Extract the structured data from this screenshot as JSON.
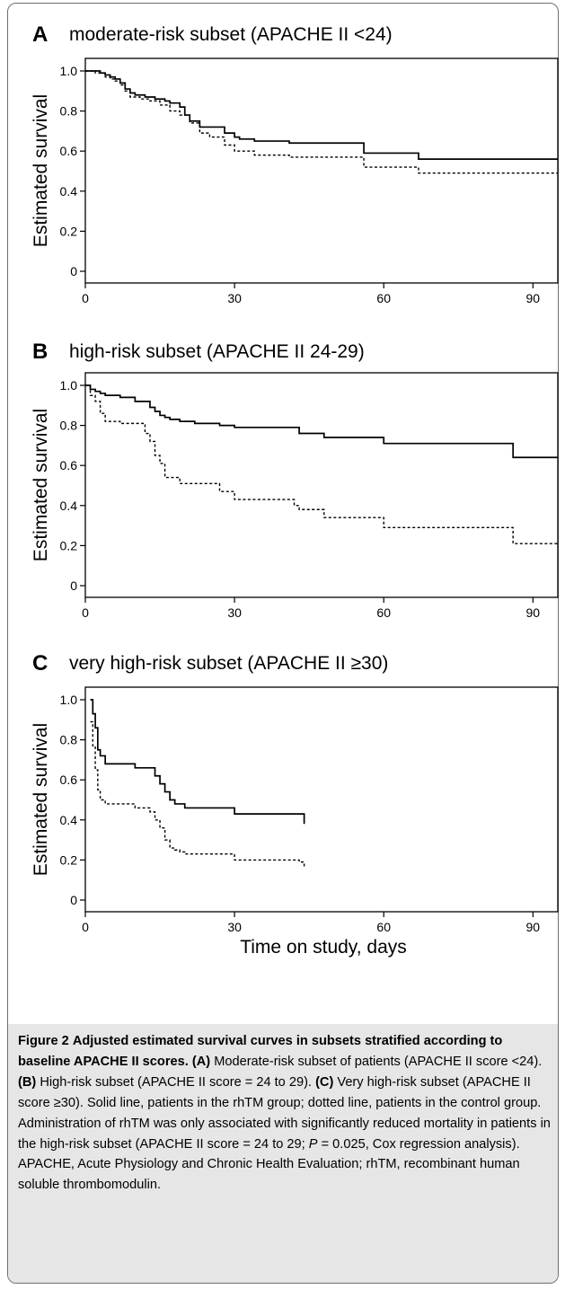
{
  "chart_data": [
    {
      "type": "line",
      "panel": "A",
      "title": "moderate-risk subset (APACHE II <24)",
      "xlabel": "",
      "ylabel": "Estimated survival",
      "xlim": [
        0,
        95
      ],
      "ylim": [
        0,
        1.0
      ],
      "xticks": [
        0,
        30,
        60,
        90
      ],
      "yticks": [
        0,
        0.2,
        0.4,
        0.6,
        0.8,
        1.0
      ],
      "ytick_labels": [
        "0",
        "0.2",
        "0.4",
        "0.6",
        "0.8",
        "1.0"
      ],
      "step": true,
      "series": [
        {
          "style": "solid",
          "x": [
            0,
            3,
            4,
            5,
            6,
            7,
            8,
            9,
            10,
            12,
            14,
            16,
            17,
            19,
            20,
            21,
            23,
            25,
            28,
            30,
            31,
            34,
            41,
            56,
            67,
            95
          ],
          "y": [
            1.0,
            0.99,
            0.98,
            0.97,
            0.96,
            0.94,
            0.91,
            0.89,
            0.88,
            0.87,
            0.86,
            0.85,
            0.84,
            0.82,
            0.78,
            0.75,
            0.72,
            0.72,
            0.69,
            0.67,
            0.66,
            0.65,
            0.64,
            0.59,
            0.56,
            0.56
          ]
        },
        {
          "style": "dashed",
          "x": [
            0,
            2,
            4,
            5,
            6,
            7,
            8,
            9,
            11,
            13,
            15,
            17,
            19,
            21,
            23,
            25,
            28,
            30,
            34,
            41,
            56,
            67,
            95
          ],
          "y": [
            1.0,
            0.99,
            0.97,
            0.96,
            0.95,
            0.93,
            0.9,
            0.87,
            0.86,
            0.85,
            0.83,
            0.8,
            0.78,
            0.74,
            0.69,
            0.67,
            0.63,
            0.6,
            0.58,
            0.57,
            0.52,
            0.49,
            0.49
          ]
        }
      ]
    },
    {
      "type": "line",
      "panel": "B",
      "title": "high-risk subset (APACHE II 24-29)",
      "xlabel": "",
      "ylabel": "Estimated survival",
      "xlim": [
        0,
        95
      ],
      "ylim": [
        0,
        1.0
      ],
      "xticks": [
        0,
        30,
        60,
        90
      ],
      "yticks": [
        0,
        0.2,
        0.4,
        0.6,
        0.8,
        1.0
      ],
      "ytick_labels": [
        "0",
        "0.2",
        "0.4",
        "0.6",
        "0.8",
        "1.0"
      ],
      "step": true,
      "series": [
        {
          "style": "solid",
          "x": [
            0,
            1,
            2,
            3,
            4,
            7,
            10,
            13,
            14,
            15,
            16,
            17,
            19,
            22,
            27,
            30,
            43,
            48,
            60,
            86,
            95
          ],
          "y": [
            1.0,
            0.98,
            0.97,
            0.96,
            0.95,
            0.94,
            0.92,
            0.89,
            0.87,
            0.85,
            0.84,
            0.83,
            0.82,
            0.81,
            0.8,
            0.79,
            0.76,
            0.74,
            0.71,
            0.64,
            0.64
          ]
        },
        {
          "style": "dashed",
          "x": [
            0,
            1,
            2,
            3,
            4,
            7,
            12,
            13,
            14,
            15,
            16,
            17,
            19,
            27,
            30,
            42,
            43,
            48,
            60,
            86,
            95
          ],
          "y": [
            1.0,
            0.95,
            0.92,
            0.86,
            0.82,
            0.81,
            0.76,
            0.72,
            0.65,
            0.61,
            0.54,
            0.54,
            0.51,
            0.47,
            0.43,
            0.4,
            0.38,
            0.34,
            0.29,
            0.21,
            0.21
          ]
        }
      ]
    },
    {
      "type": "line",
      "panel": "C",
      "title": "very high-risk subset (APACHE II ≥30)",
      "xlabel": "Time on study, days",
      "ylabel": "Estimated survival",
      "xlim": [
        0,
        95
      ],
      "ylim": [
        0,
        1.0
      ],
      "xticks": [
        0,
        30,
        60,
        90
      ],
      "yticks": [
        0,
        0.2,
        0.4,
        0.6,
        0.8,
        1.0
      ],
      "ytick_labels": [
        "0",
        "0.2",
        "0.4",
        "0.6",
        "0.8",
        "1.0"
      ],
      "step": true,
      "series": [
        {
          "style": "solid",
          "x": [
            1,
            1.5,
            2,
            2.5,
            3,
            4,
            10,
            14,
            15,
            16,
            17,
            18,
            20,
            30,
            44
          ],
          "y": [
            1.0,
            0.93,
            0.86,
            0.75,
            0.72,
            0.68,
            0.66,
            0.62,
            0.58,
            0.54,
            0.5,
            0.48,
            0.46,
            0.43,
            0.38
          ]
        },
        {
          "style": "dashed",
          "x": [
            1,
            1.5,
            2,
            2.5,
            3,
            4,
            10,
            13,
            14,
            15,
            16,
            17,
            18,
            19,
            20,
            30,
            43,
            44
          ],
          "y": [
            0.89,
            0.77,
            0.65,
            0.55,
            0.5,
            0.48,
            0.46,
            0.44,
            0.4,
            0.36,
            0.3,
            0.26,
            0.25,
            0.24,
            0.23,
            0.2,
            0.19,
            0.16
          ]
        }
      ]
    }
  ],
  "caption": {
    "label": "Figure 2",
    "title": "Adjusted estimated survival curves in subsets stratified according to baseline APACHE II scores.",
    "a_tag": "(A)",
    "a_text": "Moderate-risk subset of patients (APACHE II score <24).",
    "b_tag": "(B)",
    "b_text": "High-risk subset (APACHE II score = 24 to 29).",
    "c_tag": "(C)",
    "c_text": "Very high-risk subset (APACHE II score ≥30). Solid line, patients in the rhTM group; dotted line, patients in the control group. Administration of rhTM was only associated with significantly reduced mortality in patients in the high-risk subset (APACHE II score = 24 to 29;",
    "p_symbol": "P",
    "tail_text": "= 0.025, Cox regression analysis). APACHE, Acute Physiology and Chronic Health Evaluation; rhTM, recombinant human soluble thrombomodulin."
  }
}
